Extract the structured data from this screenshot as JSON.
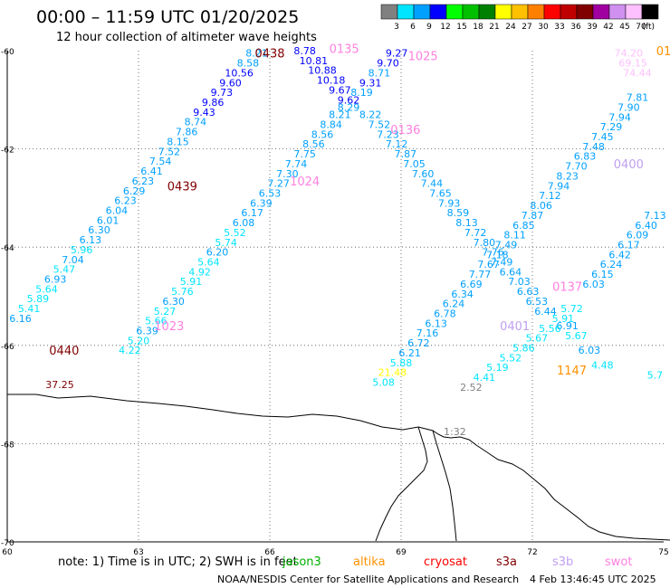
{
  "header": {
    "title": "00:00 – 11:59 UTC 01/20/2025",
    "subtitle": "12 hour collection of altimeter wave heights"
  },
  "legend": {
    "unit": "(ft)",
    "bins": [
      {
        "label": "3",
        "color": "#808080"
      },
      {
        "label": "6",
        "color": "#00e5ff"
      },
      {
        "label": "9",
        "color": "#00a0ff"
      },
      {
        "label": "12",
        "color": "#0000ff"
      },
      {
        "label": "15",
        "color": "#00ff00"
      },
      {
        "label": "18",
        "color": "#00c000"
      },
      {
        "label": "21",
        "color": "#008000"
      },
      {
        "label": "24",
        "color": "#ffff00"
      },
      {
        "label": "27",
        "color": "#ffc000"
      },
      {
        "label": "30",
        "color": "#ff8000"
      },
      {
        "label": "33",
        "color": "#ff0000"
      },
      {
        "label": "36",
        "color": "#c00000"
      },
      {
        "label": "39",
        "color": "#800000"
      },
      {
        "label": "42",
        "color": "#a000a0"
      },
      {
        "label": "45",
        "color": "#d090f0"
      },
      {
        "label": "70",
        "color": "#ffc0ff"
      },
      {
        "label": "",
        "color": "#000000"
      }
    ]
  },
  "axes": {
    "y_labels": [
      "-60",
      "-62",
      "-64",
      "-66",
      "-68",
      "-70"
    ],
    "x_labels": [
      "60",
      "63",
      "66",
      "69",
      "72",
      "75"
    ]
  },
  "time_labels": [
    {
      "text": "0438",
      "lon": 66.0,
      "lat": -60.05,
      "color": "#800000"
    },
    {
      "text": "0135",
      "lon": 67.7,
      "lat": -59.95,
      "color": "#ff80e0"
    },
    {
      "text": "1025",
      "lon": 69.5,
      "lat": -60.1,
      "color": "#ff80e0"
    },
    {
      "text": "0136",
      "lon": 69.1,
      "lat": -61.6,
      "color": "#ff80e0"
    },
    {
      "text": "0439",
      "lon": 64.0,
      "lat": -62.75,
      "color": "#800000"
    },
    {
      "text": "1024",
      "lon": 66.8,
      "lat": -62.65,
      "color": "#ff80e0"
    },
    {
      "text": "0400",
      "lon": 74.2,
      "lat": -62.3,
      "color": "#c0a0f0"
    },
    {
      "text": "0137",
      "lon": 72.8,
      "lat": -64.8,
      "color": "#ff80e0"
    },
    {
      "text": "0401",
      "lon": 71.6,
      "lat": -65.6,
      "color": "#c0a0f0"
    },
    {
      "text": "1023",
      "lon": 63.7,
      "lat": -65.6,
      "color": "#ff80e0"
    },
    {
      "text": "0440",
      "lon": 61.3,
      "lat": -66.1,
      "color": "#800000"
    },
    {
      "text": "1147",
      "lon": 72.9,
      "lat": -66.5,
      "color": "#ff9000"
    },
    {
      "text": "01",
      "lon": 75.0,
      "lat": -60.0,
      "color": "#ff9000"
    }
  ],
  "wave_heights": [
    {
      "v": "8.21",
      "lon": 65.7,
      "lat": -60.05,
      "c": "#00a0ff"
    },
    {
      "v": "8.58",
      "lon": 65.5,
      "lat": -60.25,
      "c": "#00a0ff"
    },
    {
      "v": "10.56",
      "lon": 65.3,
      "lat": -60.45,
      "c": "#0000ff"
    },
    {
      "v": "9.60",
      "lon": 65.1,
      "lat": -60.65,
      "c": "#0000ff"
    },
    {
      "v": "9.73",
      "lon": 64.9,
      "lat": -60.85,
      "c": "#0000ff"
    },
    {
      "v": "9.86",
      "lon": 64.7,
      "lat": -61.05,
      "c": "#0000ff"
    },
    {
      "v": "9.43",
      "lon": 64.5,
      "lat": -61.25,
      "c": "#0000ff"
    },
    {
      "v": "8.74",
      "lon": 64.3,
      "lat": -61.45,
      "c": "#00a0ff"
    },
    {
      "v": "7.86",
      "lon": 64.1,
      "lat": -61.65,
      "c": "#00a0ff"
    },
    {
      "v": "8.15",
      "lon": 63.9,
      "lat": -61.85,
      "c": "#00a0ff"
    },
    {
      "v": "7.52",
      "lon": 63.7,
      "lat": -62.05,
      "c": "#00a0ff"
    },
    {
      "v": "7.54",
      "lon": 63.5,
      "lat": -62.25,
      "c": "#00a0ff"
    },
    {
      "v": "6.41",
      "lon": 63.3,
      "lat": -62.45,
      "c": "#00a0ff"
    },
    {
      "v": "6.23",
      "lon": 63.1,
      "lat": -62.65,
      "c": "#00a0ff"
    },
    {
      "v": "6.29",
      "lon": 62.9,
      "lat": -62.85,
      "c": "#00a0ff"
    },
    {
      "v": "6.23",
      "lon": 62.7,
      "lat": -63.05,
      "c": "#00a0ff"
    },
    {
      "v": "6.04",
      "lon": 62.5,
      "lat": -63.25,
      "c": "#00a0ff"
    },
    {
      "v": "6.01",
      "lon": 62.3,
      "lat": -63.45,
      "c": "#00a0ff"
    },
    {
      "v": "6.30",
      "lon": 62.1,
      "lat": -63.65,
      "c": "#00a0ff"
    },
    {
      "v": "6.13",
      "lon": 61.9,
      "lat": -63.85,
      "c": "#00a0ff"
    },
    {
      "v": "5.96",
      "lon": 61.7,
      "lat": -64.05,
      "c": "#00e5ff"
    },
    {
      "v": "7.04",
      "lon": 61.5,
      "lat": -64.25,
      "c": "#00a0ff"
    },
    {
      "v": "5.47",
      "lon": 61.3,
      "lat": -64.45,
      "c": "#00e5ff"
    },
    {
      "v": "6.93",
      "lon": 61.1,
      "lat": -64.65,
      "c": "#00a0ff"
    },
    {
      "v": "5.64",
      "lon": 60.9,
      "lat": -64.85,
      "c": "#00e5ff"
    },
    {
      "v": "5.89",
      "lon": 60.7,
      "lat": -65.05,
      "c": "#00e5ff"
    },
    {
      "v": "5.41",
      "lon": 60.5,
      "lat": -65.25,
      "c": "#00e5ff"
    },
    {
      "v": "6.16",
      "lon": 60.3,
      "lat": -65.45,
      "c": "#00a0ff"
    },
    {
      "v": "37.25",
      "lon": 61.2,
      "lat": -66.8,
      "c": "#800000"
    },
    {
      "v": "8.78",
      "lon": 66.8,
      "lat": -60.0,
      "c": "#0000ff"
    },
    {
      "v": "10.81",
      "lon": 67.0,
      "lat": -60.2,
      "c": "#0000ff"
    },
    {
      "v": "10.88",
      "lon": 67.2,
      "lat": -60.4,
      "c": "#0000ff"
    },
    {
      "v": "10.18",
      "lon": 67.4,
      "lat": -60.6,
      "c": "#0000ff"
    },
    {
      "v": "9.67",
      "lon": 67.6,
      "lat": -60.8,
      "c": "#0000ff"
    },
    {
      "v": "9.62",
      "lon": 67.8,
      "lat": -61.0,
      "c": "#0000ff"
    },
    {
      "v": "8.29",
      "lon": 67.8,
      "lat": -61.15,
      "c": "#00a0ff"
    },
    {
      "v": "8.21",
      "lon": 67.6,
      "lat": -61.3,
      "c": "#00a0ff"
    },
    {
      "v": "8.84",
      "lon": 67.4,
      "lat": -61.5,
      "c": "#00a0ff"
    },
    {
      "v": "8.56",
      "lon": 67.2,
      "lat": -61.7,
      "c": "#00a0ff"
    },
    {
      "v": "8.56",
      "lon": 67.0,
      "lat": -61.9,
      "c": "#00a0ff"
    },
    {
      "v": "7.75",
      "lon": 66.8,
      "lat": -62.1,
      "c": "#00a0ff"
    },
    {
      "v": "7.74",
      "lon": 66.6,
      "lat": -62.3,
      "c": "#00a0ff"
    },
    {
      "v": "7.30",
      "lon": 66.4,
      "lat": -62.5,
      "c": "#00a0ff"
    },
    {
      "v": "7.27",
      "lon": 66.2,
      "lat": -62.7,
      "c": "#00a0ff"
    },
    {
      "v": "6.53",
      "lon": 66.0,
      "lat": -62.9,
      "c": "#00a0ff"
    },
    {
      "v": "6.39",
      "lon": 65.8,
      "lat": -63.1,
      "c": "#00a0ff"
    },
    {
      "v": "6.17",
      "lon": 65.6,
      "lat": -63.3,
      "c": "#00a0ff"
    },
    {
      "v": "6.08",
      "lon": 65.4,
      "lat": -63.5,
      "c": "#00a0ff"
    },
    {
      "v": "5.52",
      "lon": 65.2,
      "lat": -63.7,
      "c": "#00e5ff"
    },
    {
      "v": "5.74",
      "lon": 65.0,
      "lat": -63.9,
      "c": "#00e5ff"
    },
    {
      "v": "6.20",
      "lon": 64.8,
      "lat": -64.1,
      "c": "#00a0ff"
    },
    {
      "v": "5.64",
      "lon": 64.6,
      "lat": -64.3,
      "c": "#00e5ff"
    },
    {
      "v": "4.92",
      "lon": 64.4,
      "lat": -64.5,
      "c": "#00e5ff"
    },
    {
      "v": "5.91",
      "lon": 64.2,
      "lat": -64.7,
      "c": "#00e5ff"
    },
    {
      "v": "5.76",
      "lon": 64.0,
      "lat": -64.9,
      "c": "#00e5ff"
    },
    {
      "v": "6.30",
      "lon": 63.8,
      "lat": -65.1,
      "c": "#00a0ff"
    },
    {
      "v": "5.27",
      "lon": 63.6,
      "lat": -65.3,
      "c": "#00e5ff"
    },
    {
      "v": "5.66",
      "lon": 63.4,
      "lat": -65.5,
      "c": "#00e5ff"
    },
    {
      "v": "6.39",
      "lon": 63.2,
      "lat": -65.7,
      "c": "#00a0ff"
    },
    {
      "v": "5.20",
      "lon": 63.0,
      "lat": -65.9,
      "c": "#00e5ff"
    },
    {
      "v": "4.22",
      "lon": 62.8,
      "lat": -66.1,
      "c": "#00e5ff"
    },
    {
      "v": "9.27",
      "lon": 68.9,
      "lat": -60.05,
      "c": "#0000ff"
    },
    {
      "v": "9.70",
      "lon": 68.7,
      "lat": -60.25,
      "c": "#0000ff"
    },
    {
      "v": "8.71",
      "lon": 68.5,
      "lat": -60.45,
      "c": "#00a0ff"
    },
    {
      "v": "9.31",
      "lon": 68.3,
      "lat": -60.65,
      "c": "#0000ff"
    },
    {
      "v": "8.19",
      "lon": 68.1,
      "lat": -60.85,
      "c": "#00a0ff"
    },
    {
      "v": "8.22",
      "lon": 68.3,
      "lat": -61.3,
      "c": "#00a0ff"
    },
    {
      "v": "7.52",
      "lon": 68.5,
      "lat": -61.5,
      "c": "#00a0ff"
    },
    {
      "v": "7.23",
      "lon": 68.7,
      "lat": -61.7,
      "c": "#00a0ff"
    },
    {
      "v": "7.12",
      "lon": 68.9,
      "lat": -61.9,
      "c": "#00a0ff"
    },
    {
      "v": "7.87",
      "lon": 69.1,
      "lat": -62.1,
      "c": "#00a0ff"
    },
    {
      "v": "7.05",
      "lon": 69.3,
      "lat": -62.3,
      "c": "#00a0ff"
    },
    {
      "v": "7.60",
      "lon": 69.5,
      "lat": -62.5,
      "c": "#00a0ff"
    },
    {
      "v": "7.44",
      "lon": 69.7,
      "lat": -62.7,
      "c": "#00a0ff"
    },
    {
      "v": "7.65",
      "lon": 69.9,
      "lat": -62.9,
      "c": "#00a0ff"
    },
    {
      "v": "7.93",
      "lon": 70.1,
      "lat": -63.1,
      "c": "#00a0ff"
    },
    {
      "v": "8.59",
      "lon": 70.3,
      "lat": -63.3,
      "c": "#00a0ff"
    },
    {
      "v": "8.13",
      "lon": 70.5,
      "lat": -63.5,
      "c": "#00a0ff"
    },
    {
      "v": "7.72",
      "lon": 70.7,
      "lat": -63.7,
      "c": "#00a0ff"
    },
    {
      "v": "7.80",
      "lon": 70.9,
      "lat": -63.9,
      "c": "#00a0ff"
    },
    {
      "v": "7.76",
      "lon": 71.1,
      "lat": -64.1,
      "c": "#00a0ff"
    },
    {
      "v": "7.49",
      "lon": 71.3,
      "lat": -64.3,
      "c": "#00a0ff"
    },
    {
      "v": "6.64",
      "lon": 71.5,
      "lat": -64.5,
      "c": "#00a0ff"
    },
    {
      "v": "7.03",
      "lon": 71.7,
      "lat": -64.7,
      "c": "#00a0ff"
    },
    {
      "v": "6.63",
      "lon": 71.9,
      "lat": -64.9,
      "c": "#00a0ff"
    },
    {
      "v": "6.53",
      "lon": 72.1,
      "lat": -65.1,
      "c": "#00a0ff"
    },
    {
      "v": "6.44",
      "lon": 72.3,
      "lat": -65.3,
      "c": "#00a0ff"
    },
    {
      "v": "6.91",
      "lon": 72.8,
      "lat": -65.6,
      "c": "#00a0ff"
    },
    {
      "v": "5.67",
      "lon": 73.0,
      "lat": -65.8,
      "c": "#00e5ff"
    },
    {
      "v": "6.03",
      "lon": 73.3,
      "lat": -66.1,
      "c": "#00a0ff"
    },
    {
      "v": "4.48",
      "lon": 73.6,
      "lat": -66.4,
      "c": "#00e5ff"
    },
    {
      "v": "5.7",
      "lon": 74.8,
      "lat": -66.6,
      "c": "#00e5ff"
    },
    {
      "v": "74.20",
      "lon": 74.2,
      "lat": -60.05,
      "c": "#ffc0ff"
    },
    {
      "v": "69.15",
      "lon": 74.3,
      "lat": -60.25,
      "c": "#ffc0ff"
    },
    {
      "v": "74.44",
      "lon": 74.4,
      "lat": -60.45,
      "c": "#ffc0ff"
    },
    {
      "v": "7.81",
      "lon": 74.4,
      "lat": -60.95,
      "c": "#00a0ff"
    },
    {
      "v": "7.90",
      "lon": 74.2,
      "lat": -61.15,
      "c": "#00a0ff"
    },
    {
      "v": "7.94",
      "lon": 74.0,
      "lat": -61.35,
      "c": "#00a0ff"
    },
    {
      "v": "7.29",
      "lon": 73.8,
      "lat": -61.55,
      "c": "#00a0ff"
    },
    {
      "v": "7.45",
      "lon": 73.6,
      "lat": -61.75,
      "c": "#00a0ff"
    },
    {
      "v": "7.48",
      "lon": 73.4,
      "lat": -61.95,
      "c": "#00a0ff"
    },
    {
      "v": "6.83",
      "lon": 73.2,
      "lat": -62.15,
      "c": "#00a0ff"
    },
    {
      "v": "7.70",
      "lon": 73.0,
      "lat": -62.35,
      "c": "#00a0ff"
    },
    {
      "v": "8.23",
      "lon": 72.8,
      "lat": -62.55,
      "c": "#00a0ff"
    },
    {
      "v": "7.94",
      "lon": 72.6,
      "lat": -62.75,
      "c": "#00a0ff"
    },
    {
      "v": "7.12",
      "lon": 72.4,
      "lat": -62.95,
      "c": "#00a0ff"
    },
    {
      "v": "8.06",
      "lon": 72.2,
      "lat": -63.15,
      "c": "#00a0ff"
    },
    {
      "v": "7.87",
      "lon": 72.0,
      "lat": -63.35,
      "c": "#00a0ff"
    },
    {
      "v": "6.85",
      "lon": 71.8,
      "lat": -63.55,
      "c": "#00a0ff"
    },
    {
      "v": "8.11",
      "lon": 71.6,
      "lat": -63.75,
      "c": "#00a0ff"
    },
    {
      "v": "7.49",
      "lon": 71.4,
      "lat": -63.95,
      "c": "#00a0ff"
    },
    {
      "v": "7.18",
      "lon": 71.2,
      "lat": -64.15,
      "c": "#00a0ff"
    },
    {
      "v": "7.67",
      "lon": 71.0,
      "lat": -64.35,
      "c": "#00a0ff"
    },
    {
      "v": "7.77",
      "lon": 70.8,
      "lat": -64.55,
      "c": "#00a0ff"
    },
    {
      "v": "6.69",
      "lon": 70.6,
      "lat": -64.75,
      "c": "#00a0ff"
    },
    {
      "v": "6.34",
      "lon": 70.4,
      "lat": -64.95,
      "c": "#00a0ff"
    },
    {
      "v": "6.24",
      "lon": 70.2,
      "lat": -65.15,
      "c": "#00a0ff"
    },
    {
      "v": "6.78",
      "lon": 70.0,
      "lat": -65.35,
      "c": "#00a0ff"
    },
    {
      "v": "6.13",
      "lon": 69.8,
      "lat": -65.55,
      "c": "#00a0ff"
    },
    {
      "v": "7.16",
      "lon": 69.6,
      "lat": -65.75,
      "c": "#00a0ff"
    },
    {
      "v": "6.72",
      "lon": 69.4,
      "lat": -65.95,
      "c": "#00a0ff"
    },
    {
      "v": "6.21",
      "lon": 69.2,
      "lat": -66.15,
      "c": "#00a0ff"
    },
    {
      "v": "5.88",
      "lon": 69.0,
      "lat": -66.35,
      "c": "#00e5ff"
    },
    {
      "v": "21.48",
      "lon": 68.8,
      "lat": -66.55,
      "c": "#ffff00"
    },
    {
      "v": "5.08",
      "lon": 68.6,
      "lat": -66.75,
      "c": "#00e5ff"
    },
    {
      "v": "7.13",
      "lon": 74.8,
      "lat": -63.35,
      "c": "#00a0ff"
    },
    {
      "v": "6.40",
      "lon": 74.6,
      "lat": -63.55,
      "c": "#00a0ff"
    },
    {
      "v": "6.09",
      "lon": 74.4,
      "lat": -63.75,
      "c": "#00a0ff"
    },
    {
      "v": "6.17",
      "lon": 74.2,
      "lat": -63.95,
      "c": "#00a0ff"
    },
    {
      "v": "6.42",
      "lon": 74.0,
      "lat": -64.15,
      "c": "#00a0ff"
    },
    {
      "v": "6.24",
      "lon": 73.8,
      "lat": -64.35,
      "c": "#00a0ff"
    },
    {
      "v": "6.15",
      "lon": 73.6,
      "lat": -64.55,
      "c": "#00a0ff"
    },
    {
      "v": "6.03",
      "lon": 73.4,
      "lat": -64.75,
      "c": "#00a0ff"
    },
    {
      "v": "5.72",
      "lon": 72.9,
      "lat": -65.25,
      "c": "#00e5ff"
    },
    {
      "v": "5.91",
      "lon": 72.7,
      "lat": -65.45,
      "c": "#00e5ff"
    },
    {
      "v": "5.56",
      "lon": 72.4,
      "lat": -65.65,
      "c": "#00e5ff"
    },
    {
      "v": "5.67",
      "lon": 72.1,
      "lat": -65.85,
      "c": "#00e5ff"
    },
    {
      "v": "5.86",
      "lon": 71.8,
      "lat": -66.05,
      "c": "#00e5ff"
    },
    {
      "v": "5.52",
      "lon": 71.5,
      "lat": -66.25,
      "c": "#00e5ff"
    },
    {
      "v": "5.19",
      "lon": 71.2,
      "lat": -66.45,
      "c": "#00e5ff"
    },
    {
      "v": "4.41",
      "lon": 70.9,
      "lat": -66.65,
      "c": "#00e5ff"
    },
    {
      "v": "2.52",
      "lon": 70.6,
      "lat": -66.85,
      "c": "#808080"
    }
  ],
  "map_labels": {
    "coast_time": "1:32"
  },
  "note": {
    "prefix": "note:  1) Time is in UTC;  2) SWH is in feet",
    "sats": [
      {
        "name": "jason3",
        "color": "#00b000"
      },
      {
        "name": "altika",
        "color": "#ff9000"
      },
      {
        "name": "cryosat",
        "color": "#ff0000"
      },
      {
        "name": "s3a",
        "color": "#800000"
      },
      {
        "name": "s3b",
        "color": "#c0a0f0"
      },
      {
        "name": "swot",
        "color": "#ff80e0"
      }
    ]
  },
  "footer": {
    "credit": "NOAA/NESDIS Center for Satellite Applications and Research",
    "timestamp": "4 Feb 13:46:45 UTC 2025"
  }
}
